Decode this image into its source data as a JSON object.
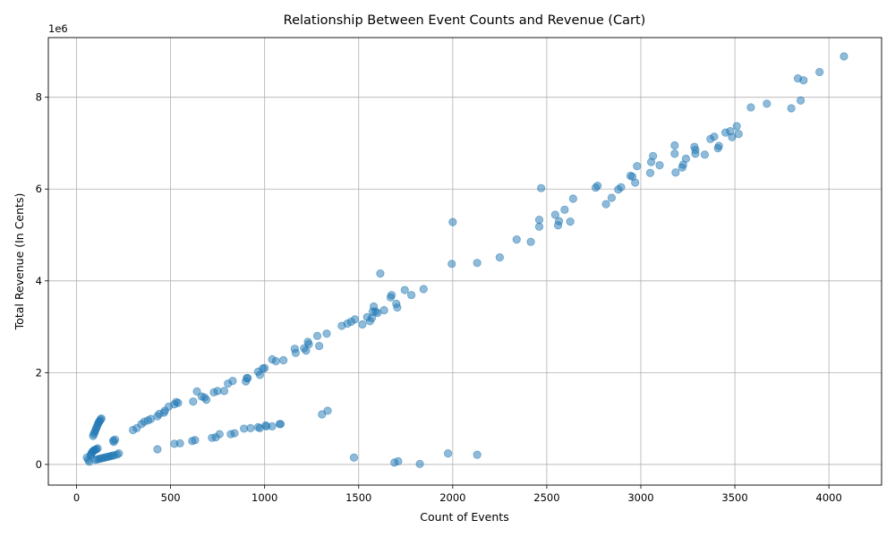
{
  "chart_data": {
    "type": "scatter",
    "title": "Relationship Between Event Counts and Revenue (Cart)",
    "xlabel": "Count of Events",
    "ylabel": "Total Revenue (In Cents)",
    "y_offset_label": "1e6",
    "xlim": [
      -150,
      4280
    ],
    "ylim": [
      -450000,
      9300000
    ],
    "xticks": [
      0,
      500,
      1000,
      1500,
      2000,
      2500,
      3000,
      3500,
      4000
    ],
    "xtick_labels": [
      "0",
      "500",
      "1000",
      "1500",
      "2000",
      "2500",
      "3000",
      "3500",
      "4000"
    ],
    "yticks": [
      0,
      2000000,
      4000000,
      6000000,
      8000000
    ],
    "ytick_labels": [
      "0",
      "2",
      "4",
      "6",
      "8"
    ],
    "grid": true,
    "color": "#1f77b4",
    "points": [
      [
        55,
        150000
      ],
      [
        62,
        100000
      ],
      [
        68,
        60000
      ],
      [
        75,
        200000
      ],
      [
        78,
        230000
      ],
      [
        82,
        260000
      ],
      [
        86,
        280000
      ],
      [
        90,
        300000
      ],
      [
        95,
        310000
      ],
      [
        100,
        320000
      ],
      [
        105,
        330000
      ],
      [
        112,
        350000
      ],
      [
        88,
        620000
      ],
      [
        92,
        660000
      ],
      [
        96,
        700000
      ],
      [
        100,
        740000
      ],
      [
        104,
        780000
      ],
      [
        108,
        820000
      ],
      [
        112,
        860000
      ],
      [
        116,
        900000
      ],
      [
        120,
        930000
      ],
      [
        124,
        950000
      ],
      [
        128,
        980000
      ],
      [
        132,
        1000000
      ],
      [
        100,
        100000
      ],
      [
        110,
        110000
      ],
      [
        120,
        120000
      ],
      [
        130,
        130000
      ],
      [
        140,
        140000
      ],
      [
        150,
        150000
      ],
      [
        160,
        160000
      ],
      [
        170,
        170000
      ],
      [
        180,
        180000
      ],
      [
        190,
        190000
      ],
      [
        200,
        200000
      ],
      [
        215,
        215000
      ],
      [
        225,
        240000
      ],
      [
        195,
        520000
      ],
      [
        205,
        540000
      ],
      [
        198,
        490000
      ],
      [
        300,
        750000
      ],
      [
        320,
        790000
      ],
      [
        345,
        880000
      ],
      [
        360,
        930000
      ],
      [
        380,
        960000
      ],
      [
        395,
        990000
      ],
      [
        430,
        1050000
      ],
      [
        440,
        1100000
      ],
      [
        465,
        1130000
      ],
      [
        470,
        1170000
      ],
      [
        490,
        1260000
      ],
      [
        520,
        1310000
      ],
      [
        530,
        1360000
      ],
      [
        540,
        1340000
      ],
      [
        430,
        330000
      ],
      [
        520,
        450000
      ],
      [
        550,
        460000
      ],
      [
        615,
        510000
      ],
      [
        630,
        530000
      ],
      [
        720,
        580000
      ],
      [
        740,
        590000
      ],
      [
        760,
        660000
      ],
      [
        820,
        660000
      ],
      [
        840,
        680000
      ],
      [
        890,
        780000
      ],
      [
        925,
        790000
      ],
      [
        965,
        810000
      ],
      [
        975,
        790000
      ],
      [
        1005,
        850000
      ],
      [
        1010,
        830000
      ],
      [
        1040,
        830000
      ],
      [
        1080,
        880000
      ],
      [
        1085,
        880000
      ],
      [
        620,
        1370000
      ],
      [
        640,
        1590000
      ],
      [
        665,
        1480000
      ],
      [
        680,
        1460000
      ],
      [
        690,
        1410000
      ],
      [
        730,
        1570000
      ],
      [
        750,
        1600000
      ],
      [
        785,
        1600000
      ],
      [
        805,
        1760000
      ],
      [
        830,
        1820000
      ],
      [
        900,
        1810000
      ],
      [
        905,
        1880000
      ],
      [
        910,
        1880000
      ],
      [
        965,
        2020000
      ],
      [
        975,
        1950000
      ],
      [
        990,
        2090000
      ],
      [
        1000,
        2100000
      ],
      [
        1040,
        2290000
      ],
      [
        1060,
        2250000
      ],
      [
        1100,
        2270000
      ],
      [
        1160,
        2520000
      ],
      [
        1165,
        2430000
      ],
      [
        1210,
        2530000
      ],
      [
        1220,
        2480000
      ],
      [
        1230,
        2670000
      ],
      [
        1235,
        2620000
      ],
      [
        1280,
        2800000
      ],
      [
        1290,
        2580000
      ],
      [
        1330,
        2850000
      ],
      [
        1305,
        1090000
      ],
      [
        1335,
        1170000
      ],
      [
        1410,
        3020000
      ],
      [
        1440,
        3070000
      ],
      [
        1460,
        3110000
      ],
      [
        1480,
        3160000
      ],
      [
        1520,
        3050000
      ],
      [
        1545,
        3210000
      ],
      [
        1560,
        3120000
      ],
      [
        1570,
        3190000
      ],
      [
        1575,
        3330000
      ],
      [
        1580,
        3440000
      ],
      [
        1590,
        3330000
      ],
      [
        1600,
        3300000
      ],
      [
        1635,
        3360000
      ],
      [
        1670,
        3640000
      ],
      [
        1675,
        3690000
      ],
      [
        1700,
        3500000
      ],
      [
        1705,
        3420000
      ],
      [
        1745,
        3800000
      ],
      [
        1780,
        3690000
      ],
      [
        1845,
        3820000
      ],
      [
        1615,
        4160000
      ],
      [
        1995,
        4370000
      ],
      [
        2000,
        5280000
      ],
      [
        2130,
        4390000
      ],
      [
        2250,
        4510000
      ],
      [
        2340,
        4900000
      ],
      [
        2415,
        4850000
      ],
      [
        2460,
        5180000
      ],
      [
        2460,
        5330000
      ],
      [
        2470,
        6020000
      ],
      [
        2545,
        5440000
      ],
      [
        2560,
        5210000
      ],
      [
        2565,
        5300000
      ],
      [
        2595,
        5550000
      ],
      [
        2625,
        5290000
      ],
      [
        2640,
        5790000
      ],
      [
        2760,
        6030000
      ],
      [
        2770,
        6070000
      ],
      [
        2815,
        5670000
      ],
      [
        2845,
        5810000
      ],
      [
        2880,
        5990000
      ],
      [
        2895,
        6040000
      ],
      [
        2945,
        6290000
      ],
      [
        2955,
        6270000
      ],
      [
        2970,
        6140000
      ],
      [
        2980,
        6500000
      ],
      [
        3050,
        6350000
      ],
      [
        3055,
        6590000
      ],
      [
        3065,
        6720000
      ],
      [
        3100,
        6520000
      ],
      [
        3180,
        6950000
      ],
      [
        3180,
        6770000
      ],
      [
        3185,
        6360000
      ],
      [
        3220,
        6470000
      ],
      [
        3225,
        6530000
      ],
      [
        3240,
        6660000
      ],
      [
        3285,
        6920000
      ],
      [
        3290,
        6850000
      ],
      [
        3290,
        6770000
      ],
      [
        3340,
        6750000
      ],
      [
        3370,
        7090000
      ],
      [
        3390,
        7140000
      ],
      [
        3410,
        6890000
      ],
      [
        3415,
        6940000
      ],
      [
        3450,
        7230000
      ],
      [
        3475,
        7260000
      ],
      [
        3485,
        7130000
      ],
      [
        3510,
        7370000
      ],
      [
        3520,
        7200000
      ],
      [
        3585,
        7780000
      ],
      [
        3670,
        7860000
      ],
      [
        3800,
        7760000
      ],
      [
        3835,
        8410000
      ],
      [
        3850,
        7930000
      ],
      [
        3865,
        8370000
      ],
      [
        3950,
        8550000
      ],
      [
        4080,
        8890000
      ],
      [
        1475,
        150000
      ],
      [
        1690,
        40000
      ],
      [
        1710,
        70000
      ],
      [
        1825,
        10000
      ],
      [
        1975,
        240000
      ],
      [
        2130,
        210000
      ]
    ]
  }
}
